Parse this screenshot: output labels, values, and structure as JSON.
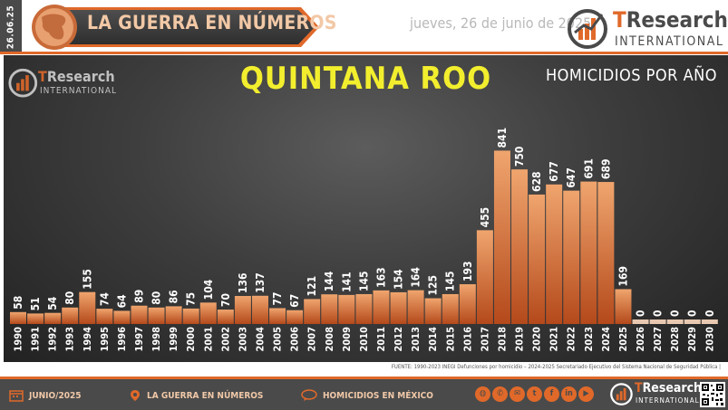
{
  "header": {
    "date_vertical": "26.06.25",
    "banner_title": "LA GUERRA EN NÚMEROS",
    "date": "jueves, 26 de junio de 2025"
  },
  "logo": {
    "brand_t": "T",
    "brand_rest": "Research",
    "subline": "INTERNATIONAL"
  },
  "chart_data": {
    "type": "bar",
    "title": "QUINTANA ROO",
    "subtitle": "HOMICIDIOS POR AÑO",
    "categories": [
      "1990",
      "1991",
      "1992",
      "1993",
      "1994",
      "1995",
      "1996",
      "1997",
      "1998",
      "1999",
      "2000",
      "2001",
      "2002",
      "2003",
      "2004",
      "2005",
      "2006",
      "2007",
      "2008",
      "2009",
      "2010",
      "2011",
      "2012",
      "2013",
      "2014",
      "2015",
      "2016",
      "2017",
      "2018",
      "2019",
      "2020",
      "2021",
      "2022",
      "2023",
      "2024",
      "2025",
      "2026",
      "2027",
      "2028",
      "2029",
      "2030"
    ],
    "values": [
      58,
      51,
      54,
      80,
      155,
      74,
      64,
      89,
      80,
      86,
      75,
      104,
      70,
      136,
      137,
      77,
      67,
      121,
      144,
      141,
      145,
      163,
      154,
      164,
      125,
      145,
      193,
      455,
      841,
      750,
      628,
      677,
      647,
      691,
      689,
      169,
      0,
      0,
      0,
      0,
      0
    ],
    "ylim": [
      0,
      900
    ],
    "grid": false,
    "colors": {
      "bar_top": "#f0a56e",
      "bar_bottom": "#b4491b",
      "empty_bar": "#e8c8b0",
      "label": "#ffffff"
    }
  },
  "source": "FUENTE: 1990-2023 INEGI Defunciones por homicidio – 2024-2025 Secretariado Ejecutivo del Sistema Nacional de Seguridad Pública |",
  "footer": {
    "month": "JUNIO/2025",
    "section": "LA GUERRA EN NÚMEROS",
    "topic": "HOMICIDIOS EN MÉXICO",
    "social_icons": [
      "globe-icon",
      "whatsapp-icon",
      "email-icon",
      "twitter-icon",
      "facebook-icon",
      "linkedin-icon",
      "youtube-icon"
    ],
    "social_glyphs": [
      "◍",
      "✆",
      "✉",
      "t",
      "f",
      "in",
      "▶"
    ]
  }
}
